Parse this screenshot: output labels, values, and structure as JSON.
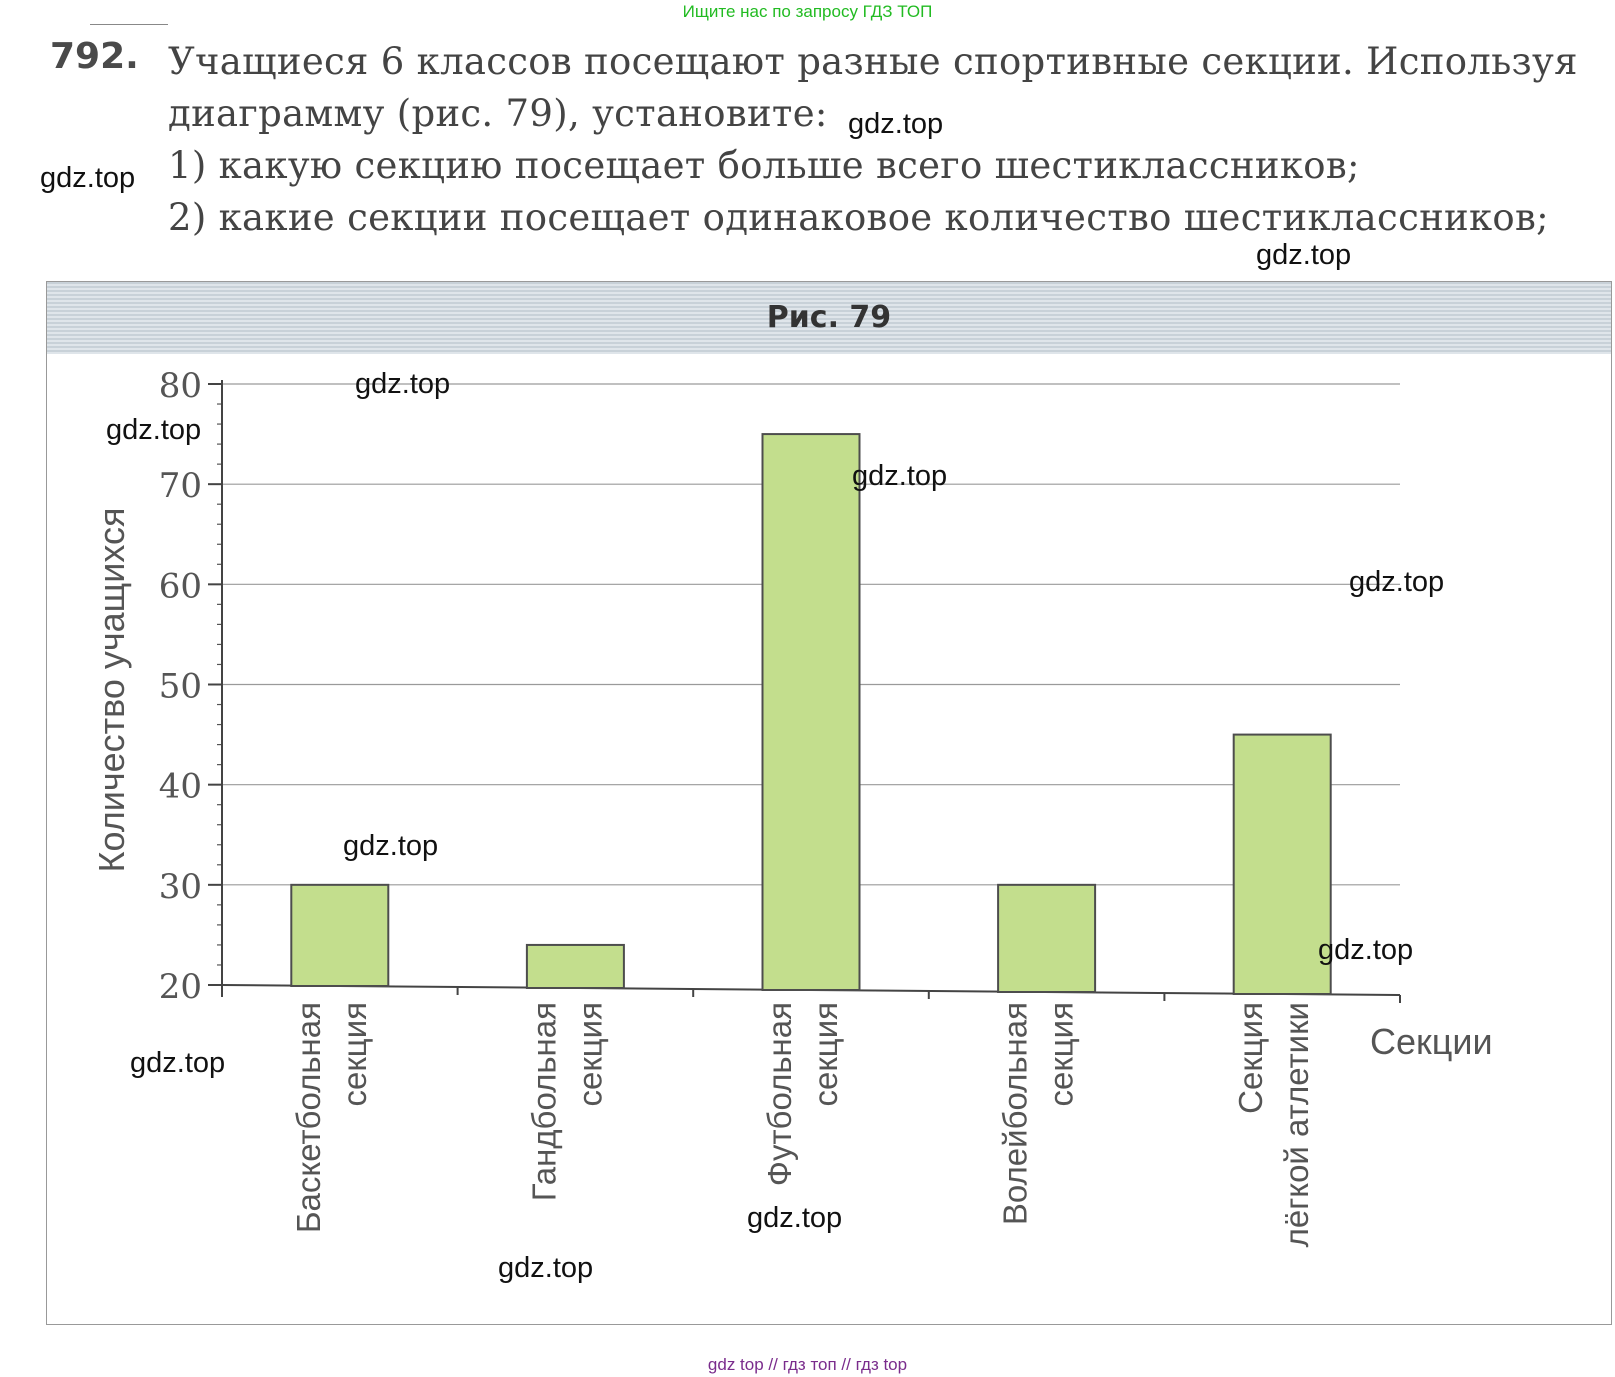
{
  "banner": "Ищите нас по запросу ГДЗ ТОП",
  "problem": {
    "number": "792.",
    "intro_line1": "Учащиеся 6 классов посещают разные спортивные секции. Используя",
    "intro_line2": "диаграмму (рис. 79), установите:",
    "q1": "1) какую секцию посещает больше всего шестиклассников;",
    "q2": "2) какие секции посещает одинаковое количество шестиклассников;"
  },
  "figure": {
    "caption": "Рис. 79"
  },
  "chart_data": {
    "type": "bar",
    "categories": [
      [
        "Баскетбольная",
        "секция"
      ],
      [
        "Гандбольная",
        "секция"
      ],
      [
        "Футбольная",
        "секция"
      ],
      [
        "Волейбольная",
        "секция"
      ],
      [
        "Секция",
        "лёгкой атлетики"
      ]
    ],
    "values": [
      30,
      24,
      75,
      30,
      45
    ],
    "ylabel": "Количество учащихся",
    "xlabel": "Секции",
    "ylim": [
      20,
      80
    ],
    "yticks": [
      "20",
      "30",
      "40",
      "50",
      "60",
      "70",
      "80"
    ],
    "grid": true,
    "bar_color": "#c3de8d",
    "bar_edge": "#4d4d4d"
  },
  "watermark": "gdz.top",
  "footer": "gdz top  //  гдз топ  //  гдз top"
}
